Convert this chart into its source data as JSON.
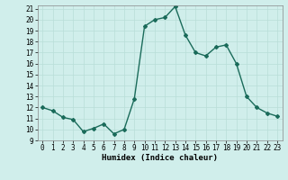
{
  "x": [
    0,
    1,
    2,
    3,
    4,
    5,
    6,
    7,
    8,
    9,
    10,
    11,
    12,
    13,
    14,
    15,
    16,
    17,
    18,
    19,
    20,
    21,
    22,
    23
  ],
  "y": [
    12.0,
    11.7,
    11.1,
    10.9,
    9.8,
    10.1,
    10.5,
    9.6,
    10.0,
    12.8,
    19.4,
    20.0,
    20.2,
    21.2,
    18.6,
    17.0,
    16.7,
    17.5,
    17.7,
    16.0,
    13.0,
    12.0,
    11.5,
    11.2
  ],
  "xlabel": "Humidex (Indice chaleur)",
  "ylim": [
    9,
    21
  ],
  "xlim": [
    -0.5,
    23.5
  ],
  "yticks": [
    9,
    10,
    11,
    12,
    13,
    14,
    15,
    16,
    17,
    18,
    19,
    20,
    21
  ],
  "xticks": [
    0,
    1,
    2,
    3,
    4,
    5,
    6,
    7,
    8,
    9,
    10,
    11,
    12,
    13,
    14,
    15,
    16,
    17,
    18,
    19,
    20,
    21,
    22,
    23
  ],
  "xtick_labels": [
    "0",
    "1",
    "2",
    "3",
    "4",
    "5",
    "6",
    "7",
    "8",
    "9",
    "10",
    "11",
    "12",
    "13",
    "14",
    "15",
    "16",
    "17",
    "18",
    "19",
    "20",
    "21",
    "22",
    "23"
  ],
  "line_color": "#1a6b5a",
  "marker": "D",
  "marker_size": 2.0,
  "bg_color": "#d0eeeb",
  "grid_color": "#b8ddd8",
  "linewidth": 1.0,
  "tick_fontsize": 5.5,
  "xlabel_fontsize": 6.5
}
